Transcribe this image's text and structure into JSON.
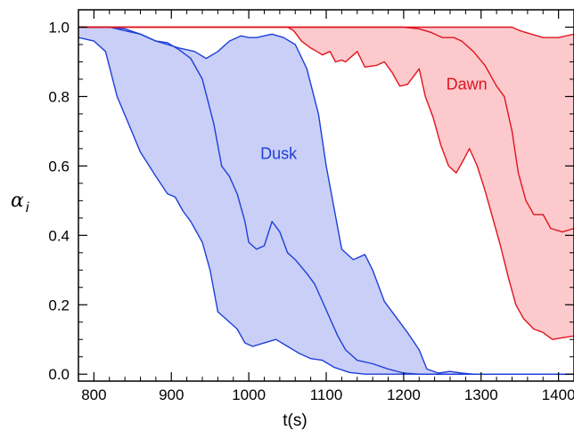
{
  "chart_data": {
    "type": "area",
    "xlabel": "t(s)",
    "ylabel": {
      "symbol": "α",
      "subscript": "i"
    },
    "xlim": [
      780,
      1420
    ],
    "ylim": [
      -0.02,
      1.05
    ],
    "xticks": [
      800,
      900,
      1000,
      1100,
      1200,
      1300,
      1400
    ],
    "xtick_labels": [
      "800",
      "900",
      "1000",
      "1100",
      "1200",
      "1300",
      "1400"
    ],
    "yticks": [
      0.0,
      0.2,
      0.4,
      0.6,
      0.8,
      1.0
    ],
    "ytick_labels": [
      "0.0",
      "0.2",
      "0.4",
      "0.6",
      "0.8",
      "1.0"
    ],
    "grid": false,
    "colors": {
      "dusk_line": "#1e3fd8",
      "dusk_fill": "#c9cff7",
      "dawn_line": "#e0141e",
      "dawn_fill": "#fcc9cc"
    },
    "series": [
      {
        "name": "Dusk",
        "label_at": [
          1015,
          0.62
        ],
        "upper": [
          [
            780,
            1.0
          ],
          [
            820,
            1.0
          ],
          [
            840,
            0.99
          ],
          [
            860,
            0.98
          ],
          [
            880,
            0.96
          ],
          [
            895,
            0.95
          ],
          [
            910,
            0.94
          ],
          [
            930,
            0.93
          ],
          [
            945,
            0.91
          ],
          [
            960,
            0.93
          ],
          [
            975,
            0.96
          ],
          [
            990,
            0.975
          ],
          [
            1000,
            0.97
          ],
          [
            1010,
            0.97
          ],
          [
            1030,
            0.98
          ],
          [
            1045,
            0.97
          ],
          [
            1060,
            0.95
          ],
          [
            1075,
            0.88
          ],
          [
            1090,
            0.75
          ],
          [
            1100,
            0.6
          ],
          [
            1110,
            0.48
          ],
          [
            1120,
            0.36
          ],
          [
            1135,
            0.33
          ],
          [
            1150,
            0.345
          ],
          [
            1160,
            0.3
          ],
          [
            1175,
            0.21
          ],
          [
            1190,
            0.165
          ],
          [
            1205,
            0.12
          ],
          [
            1220,
            0.07
          ],
          [
            1230,
            0.015
          ],
          [
            1245,
            0.003
          ],
          [
            1260,
            0.008
          ],
          [
            1275,
            0.003
          ],
          [
            1290,
            0.0
          ],
          [
            1420,
            0.0
          ]
        ],
        "middle": [
          [
            780,
            1.0
          ],
          [
            820,
            1.0
          ],
          [
            840,
            0.995
          ],
          [
            860,
            0.98
          ],
          [
            880,
            0.96
          ],
          [
            895,
            0.955
          ],
          [
            910,
            0.935
          ],
          [
            925,
            0.91
          ],
          [
            940,
            0.85
          ],
          [
            955,
            0.72
          ],
          [
            965,
            0.6
          ],
          [
            975,
            0.57
          ],
          [
            985,
            0.52
          ],
          [
            995,
            0.44
          ],
          [
            1000,
            0.38
          ],
          [
            1010,
            0.36
          ],
          [
            1020,
            0.37
          ],
          [
            1030,
            0.44
          ],
          [
            1040,
            0.41
          ],
          [
            1050,
            0.35
          ],
          [
            1060,
            0.33
          ],
          [
            1075,
            0.29
          ],
          [
            1085,
            0.26
          ],
          [
            1095,
            0.21
          ],
          [
            1105,
            0.16
          ],
          [
            1115,
            0.11
          ],
          [
            1125,
            0.07
          ],
          [
            1140,
            0.04
          ],
          [
            1160,
            0.03
          ],
          [
            1180,
            0.015
          ],
          [
            1200,
            0.003
          ],
          [
            1220,
            0.0
          ],
          [
            1420,
            0.0
          ]
        ],
        "lower": [
          [
            780,
            0.97
          ],
          [
            800,
            0.96
          ],
          [
            815,
            0.93
          ],
          [
            830,
            0.8
          ],
          [
            845,
            0.72
          ],
          [
            860,
            0.64
          ],
          [
            880,
            0.57
          ],
          [
            895,
            0.52
          ],
          [
            905,
            0.51
          ],
          [
            915,
            0.47
          ],
          [
            925,
            0.44
          ],
          [
            940,
            0.38
          ],
          [
            950,
            0.3
          ],
          [
            960,
            0.18
          ],
          [
            970,
            0.16
          ],
          [
            985,
            0.13
          ],
          [
            995,
            0.09
          ],
          [
            1005,
            0.08
          ],
          [
            1020,
            0.09
          ],
          [
            1035,
            0.1
          ],
          [
            1050,
            0.08
          ],
          [
            1065,
            0.06
          ],
          [
            1080,
            0.045
          ],
          [
            1095,
            0.04
          ],
          [
            1110,
            0.02
          ],
          [
            1130,
            0.005
          ],
          [
            1150,
            0.0
          ],
          [
            1420,
            0.0
          ]
        ]
      },
      {
        "name": "Dawn",
        "label_at": [
          1255,
          0.82
        ],
        "upper": [
          [
            780,
            1.0
          ],
          [
            1000,
            1.0
          ],
          [
            1100,
            1.0
          ],
          [
            1200,
            1.0
          ],
          [
            1300,
            1.0
          ],
          [
            1340,
            1.0
          ],
          [
            1350,
            0.99
          ],
          [
            1365,
            0.98
          ],
          [
            1380,
            0.97
          ],
          [
            1400,
            0.97
          ],
          [
            1420,
            0.98
          ]
        ],
        "middle": [
          [
            780,
            1.0
          ],
          [
            1000,
            1.0
          ],
          [
            1100,
            1.0
          ],
          [
            1200,
            1.0
          ],
          [
            1220,
            0.995
          ],
          [
            1235,
            0.985
          ],
          [
            1250,
            0.97
          ],
          [
            1265,
            0.97
          ],
          [
            1275,
            0.96
          ],
          [
            1290,
            0.93
          ],
          [
            1305,
            0.89
          ],
          [
            1320,
            0.83
          ],
          [
            1330,
            0.8
          ],
          [
            1340,
            0.7
          ],
          [
            1348,
            0.58
          ],
          [
            1358,
            0.5
          ],
          [
            1368,
            0.46
          ],
          [
            1380,
            0.46
          ],
          [
            1390,
            0.42
          ],
          [
            1405,
            0.41
          ],
          [
            1420,
            0.42
          ]
        ],
        "lower": [
          [
            780,
            1.0
          ],
          [
            1050,
            1.0
          ],
          [
            1058,
            0.99
          ],
          [
            1068,
            0.96
          ],
          [
            1080,
            0.94
          ],
          [
            1088,
            0.93
          ],
          [
            1095,
            0.92
          ],
          [
            1105,
            0.93
          ],
          [
            1112,
            0.9
          ],
          [
            1120,
            0.905
          ],
          [
            1125,
            0.9
          ],
          [
            1140,
            0.93
          ],
          [
            1150,
            0.885
          ],
          [
            1165,
            0.89
          ],
          [
            1175,
            0.9
          ],
          [
            1185,
            0.87
          ],
          [
            1195,
            0.83
          ],
          [
            1205,
            0.835
          ],
          [
            1220,
            0.88
          ],
          [
            1228,
            0.8
          ],
          [
            1238,
            0.74
          ],
          [
            1248,
            0.66
          ],
          [
            1258,
            0.6
          ],
          [
            1268,
            0.58
          ],
          [
            1278,
            0.62
          ],
          [
            1285,
            0.65
          ],
          [
            1295,
            0.6
          ],
          [
            1305,
            0.53
          ],
          [
            1315,
            0.45
          ],
          [
            1325,
            0.37
          ],
          [
            1335,
            0.28
          ],
          [
            1345,
            0.2
          ],
          [
            1355,
            0.16
          ],
          [
            1368,
            0.13
          ],
          [
            1380,
            0.12
          ],
          [
            1392,
            0.1
          ],
          [
            1405,
            0.105
          ],
          [
            1420,
            0.11
          ]
        ]
      }
    ]
  }
}
